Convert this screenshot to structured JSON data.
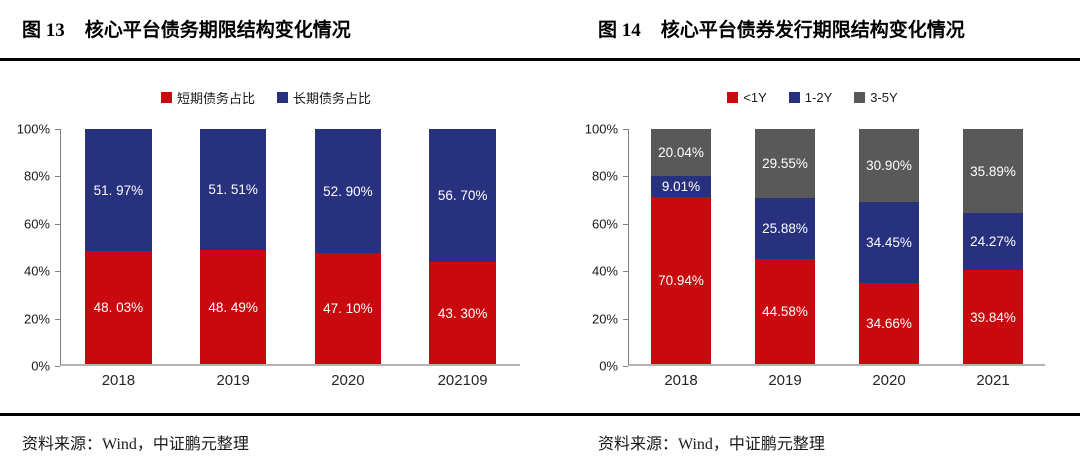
{
  "chart_data": [
    {
      "type": "bar",
      "stacked": true,
      "fig_no": "图 13",
      "title": "核心平台债务期限结构变化情况",
      "source": "资料来源：Wind，中证鹏元整理",
      "categories": [
        "2018",
        "2019",
        "2020",
        "202109"
      ],
      "series": [
        {
          "name": "短期债务占比",
          "color": "#c8090e",
          "values": [
            48.03,
            48.49,
            47.1,
            43.3
          ],
          "labels": [
            "48. 03%",
            "48. 49%",
            "47. 10%",
            "43. 30%"
          ]
        },
        {
          "name": "长期债务占比",
          "color": "#28317e",
          "values": [
            51.97,
            51.51,
            52.9,
            56.7
          ],
          "labels": [
            "51. 97%",
            "51. 51%",
            "52. 90%",
            "56. 70%"
          ]
        }
      ],
      "ylim": [
        0,
        100
      ],
      "yticks": [
        "0%",
        "20%",
        "40%",
        "60%",
        "80%",
        "100%"
      ],
      "grid": false,
      "legend_position": "top"
    },
    {
      "type": "bar",
      "stacked": true,
      "fig_no": "图 14",
      "title": "核心平台债券发行期限结构变化情况",
      "source": "资料来源：Wind，中证鹏元整理",
      "categories": [
        "2018",
        "2019",
        "2020",
        "2021"
      ],
      "series": [
        {
          "name": "<1Y",
          "color": "#c8090e",
          "values": [
            70.94,
            44.58,
            34.66,
            39.84
          ],
          "labels": [
            "70.94%",
            "44.58%",
            "34.66%",
            "39.84%"
          ]
        },
        {
          "name": "1-2Y",
          "color": "#28317e",
          "values": [
            9.01,
            25.88,
            34.45,
            24.27
          ],
          "labels": [
            "9.01%",
            "25.88%",
            "34.45%",
            "24.27%"
          ]
        },
        {
          "name": "3-5Y",
          "color": "#595959",
          "values": [
            20.04,
            29.55,
            30.9,
            35.89
          ],
          "labels": [
            "20.04%",
            "29.55%",
            "30.90%",
            "35.89%"
          ]
        }
      ],
      "ylim": [
        0,
        100
      ],
      "yticks": [
        "0%",
        "20%",
        "40%",
        "60%",
        "80%",
        "100%"
      ],
      "grid": false,
      "legend_position": "top"
    }
  ],
  "colors": {
    "bar_red": "#c8090e",
    "bar_blue": "#28317e",
    "bar_gray": "#595959",
    "axis_line": "#7f7f7f",
    "baseline": "#b3b3b3",
    "rule": "#000000"
  }
}
